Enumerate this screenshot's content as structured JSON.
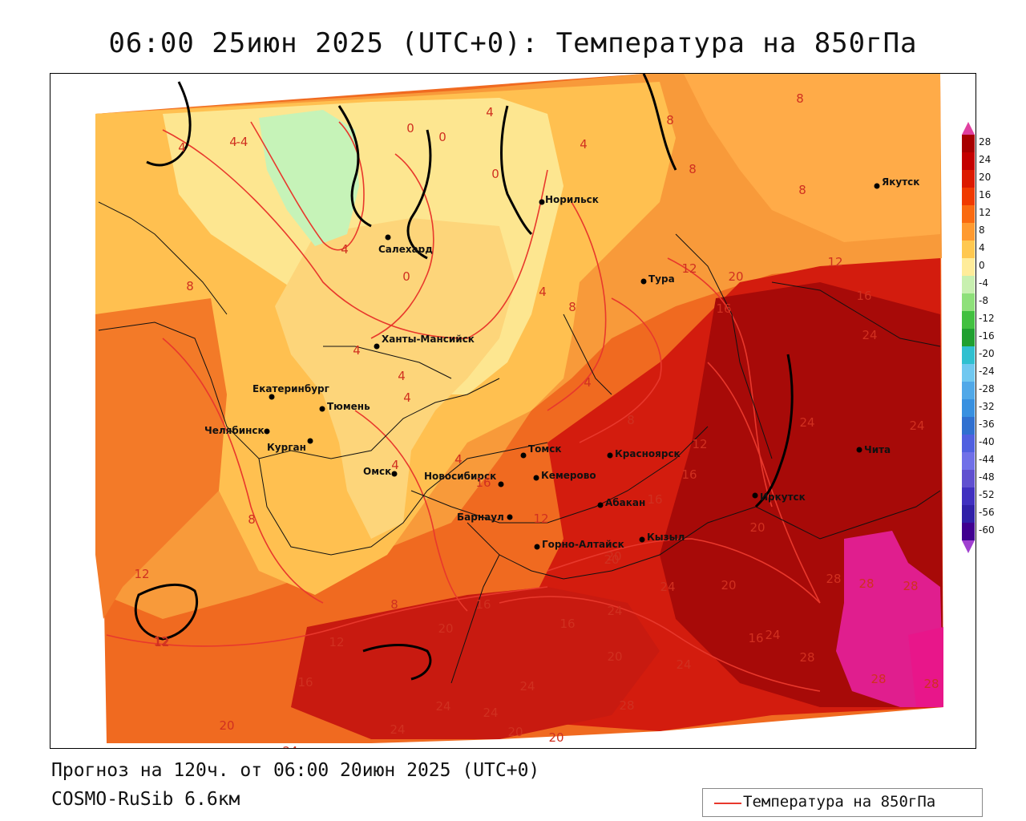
{
  "title": "06:00 25июн 2025 (UTC+0): Температура на 850гПа",
  "footer": {
    "forecast": "Прогноз на 120ч. от 06:00 20июн 2025 (UTC+0)",
    "model": "COSMO-RuSib 6.6км"
  },
  "legend": {
    "label": "Температура на 850гПа",
    "line_color": "#e8382c"
  },
  "colorbar": {
    "ticks": [
      "28",
      "24",
      "20",
      "16",
      "12",
      "8",
      "4",
      "0",
      "-4",
      "-8",
      "-12",
      "-16",
      "-20",
      "-24",
      "-28",
      "-32",
      "-36",
      "-40",
      "-44",
      "-48",
      "-52",
      "-56",
      "-60"
    ],
    "colors": [
      "#a80000",
      "#c40000",
      "#dc1a00",
      "#f03a00",
      "#fa6a10",
      "#ff9a30",
      "#ffc850",
      "#ffec9a",
      "#c8f0b0",
      "#8ee07a",
      "#42c040",
      "#20a030",
      "#30c0d0",
      "#70c8f0",
      "#50a8e8",
      "#3890e0",
      "#3070d0",
      "#5060e0",
      "#7070e8",
      "#6050d0",
      "#4030c0",
      "#3020a8",
      "#400090"
    ],
    "arrow_top_color": "#e040a0",
    "arrow_bottom_color": "#a040d0"
  },
  "cities": [
    {
      "name": "Якутск"
    },
    {
      "name": "Норильск"
    },
    {
      "name": "Салехард"
    },
    {
      "name": "Тура"
    },
    {
      "name": "Ханты-Мансийск"
    },
    {
      "name": "Екатеринбург"
    },
    {
      "name": "Тюмень"
    },
    {
      "name": "Челябинск"
    },
    {
      "name": "Курган"
    },
    {
      "name": "Омск"
    },
    {
      "name": "Томск"
    },
    {
      "name": "Красноярск"
    },
    {
      "name": "Кемерово"
    },
    {
      "name": "Новосибирск"
    },
    {
      "name": "Абакан"
    },
    {
      "name": "Барнаул"
    },
    {
      "name": "Горно-Алтайск"
    },
    {
      "name": "Кызыл"
    },
    {
      "name": "Иркутск"
    },
    {
      "name": "Чита"
    }
  ],
  "contour_labels": [
    "8",
    "8",
    "8",
    "8",
    "4",
    "4",
    "0",
    "0",
    "0",
    "4",
    "4",
    "-4",
    "4",
    "4",
    "8",
    "0",
    "4",
    "4",
    "4",
    "4",
    "4",
    "12",
    "20",
    "16",
    "12",
    "16",
    "24",
    "8",
    "4",
    "8",
    "12",
    "16",
    "24",
    "24",
    "12",
    "16",
    "20",
    "16",
    "8",
    "12",
    "12",
    "8",
    "16",
    "20",
    "16",
    "20",
    "20",
    "24",
    "24",
    "28",
    "28",
    "12",
    "12",
    "16",
    "20",
    "24",
    "20",
    "24",
    "24",
    "16",
    "24",
    "20",
    "28",
    "28",
    "28",
    "28",
    "24",
    "24",
    "24",
    "28",
    "20",
    "24",
    "20"
  ],
  "colors": {
    "frame": "#000000",
    "contour": "#e8382c",
    "label_text": "#d03020"
  }
}
